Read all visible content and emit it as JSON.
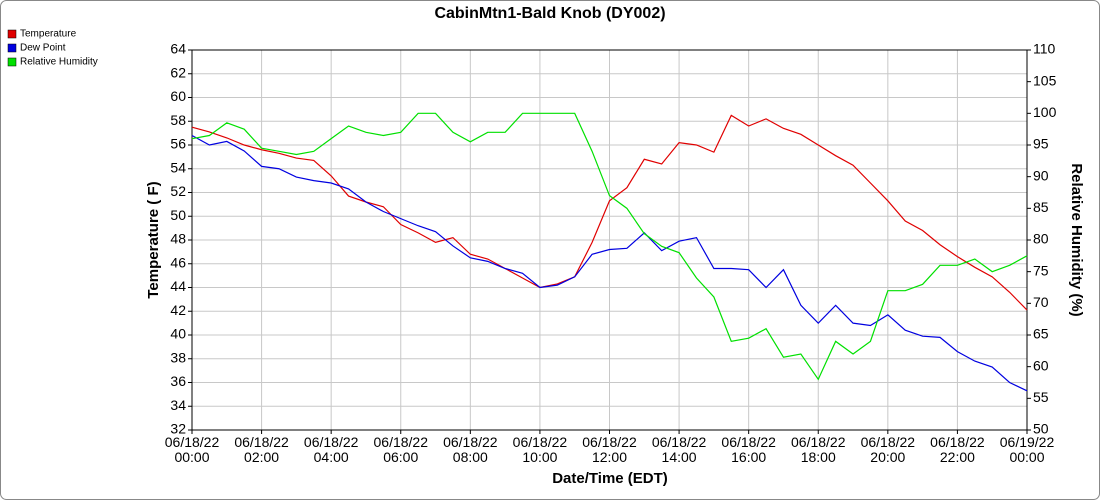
{
  "chart_data": {
    "type": "line",
    "title": "CabinMtn1-Bald Knob (DY002)",
    "xlabel": "Date/Time (EDT)",
    "ylabel": "Temperature ( F)",
    "y2label": "Relative Humidity (%)",
    "grid": true,
    "legend": "top-left",
    "xlim": [
      "06/18/22 00:00",
      "06/19/22 00:00"
    ],
    "xticks": [
      "06/18/22\n00:00",
      "06/18/22\n02:00",
      "06/18/22\n04:00",
      "06/18/22\n06:00",
      "06/18/22\n08:00",
      "06/18/22\n10:00",
      "06/18/22\n12:00",
      "06/18/22\n14:00",
      "06/18/22\n16:00",
      "06/18/22\n18:00",
      "06/18/22\n20:00",
      "06/18/22\n22:00",
      "06/19/22\n00:00"
    ],
    "ylim": [
      32,
      64
    ],
    "yticks": [
      32,
      34,
      36,
      38,
      40,
      42,
      44,
      46,
      48,
      50,
      52,
      54,
      56,
      58,
      60,
      62,
      64
    ],
    "y2lim": [
      50,
      110
    ],
    "y2ticks": [
      50,
      55,
      60,
      65,
      70,
      75,
      80,
      85,
      90,
      95,
      100,
      105,
      110
    ],
    "x": [
      "06/18/22 00:00",
      "06/18/22 00:30",
      "06/18/22 01:00",
      "06/18/22 01:30",
      "06/18/22 02:00",
      "06/18/22 02:30",
      "06/18/22 03:00",
      "06/18/22 03:30",
      "06/18/22 04:00",
      "06/18/22 04:30",
      "06/18/22 05:00",
      "06/18/22 05:30",
      "06/18/22 06:00",
      "06/18/22 06:30",
      "06/18/22 07:00",
      "06/18/22 07:30",
      "06/18/22 08:00",
      "06/18/22 08:30",
      "06/18/22 09:00",
      "06/18/22 09:30",
      "06/18/22 10:00",
      "06/18/22 10:30",
      "06/18/22 11:00",
      "06/18/22 11:30",
      "06/18/22 12:00",
      "06/18/22 12:30",
      "06/18/22 13:00",
      "06/18/22 13:30",
      "06/18/22 14:00",
      "06/18/22 14:30",
      "06/18/22 15:00",
      "06/18/22 15:30",
      "06/18/22 16:00",
      "06/18/22 16:30",
      "06/18/22 17:00",
      "06/18/22 17:30",
      "06/18/22 18:00",
      "06/18/22 18:30",
      "06/18/22 19:00",
      "06/18/22 19:30",
      "06/18/22 20:00",
      "06/18/22 20:30",
      "06/18/22 21:00",
      "06/18/22 21:30",
      "06/18/22 22:00",
      "06/18/22 22:30",
      "06/18/22 23:00",
      "06/18/22 23:30",
      "06/19/22 00:00"
    ],
    "series": [
      {
        "name": "Temperature",
        "color": "#e00000",
        "values": [
          57.5,
          57.1,
          56.6,
          56.0,
          55.6,
          55.3,
          54.9,
          54.7,
          53.4,
          51.7,
          51.2,
          50.8,
          49.3,
          48.6,
          47.8,
          48.2,
          46.8,
          46.4,
          45.6,
          44.8,
          44.0,
          44.3,
          44.9,
          47.8,
          51.3,
          52.4,
          54.8,
          54.4,
          56.2,
          56.0,
          55.4,
          58.5,
          57.6,
          58.2,
          57.4,
          56.9,
          56.0,
          55.1,
          54.3,
          52.8,
          51.3,
          49.6,
          48.8,
          47.6,
          46.6,
          45.7,
          44.9,
          43.6,
          42.1
        ]
      },
      {
        "name": "Dew Point",
        "color": "#0000e0",
        "values": [
          56.8,
          56.0,
          56.3,
          55.5,
          54.2,
          54.0,
          53.3,
          53.0,
          52.8,
          52.3,
          51.2,
          50.4,
          49.8,
          49.2,
          48.7,
          47.5,
          46.5,
          46.2,
          45.6,
          45.2,
          44.0,
          44.2,
          44.9,
          46.8,
          47.2,
          47.3,
          48.6,
          47.1,
          47.9,
          48.2,
          45.6,
          45.6,
          45.5,
          44.0,
          45.5,
          42.5,
          41.0,
          42.5,
          41.0,
          40.8,
          41.7,
          40.4,
          39.9,
          39.8,
          38.6,
          37.8,
          37.3,
          36.0,
          35.3
        ]
      },
      {
        "name": "Relative Humidity",
        "color": "#00e000",
        "axis": "y2",
        "values": [
          96,
          96.5,
          98.5,
          97.5,
          94.5,
          94,
          93.5,
          94,
          96,
          98,
          97,
          96.5,
          97,
          100,
          100,
          97,
          95.5,
          97,
          97,
          100,
          100,
          100,
          100,
          94,
          87,
          85,
          81,
          79,
          78,
          74,
          71,
          64,
          64.5,
          66,
          61.5,
          62,
          58,
          64,
          62,
          64,
          72,
          72,
          73,
          76,
          76,
          77,
          75,
          76,
          77.5
        ]
      }
    ]
  }
}
